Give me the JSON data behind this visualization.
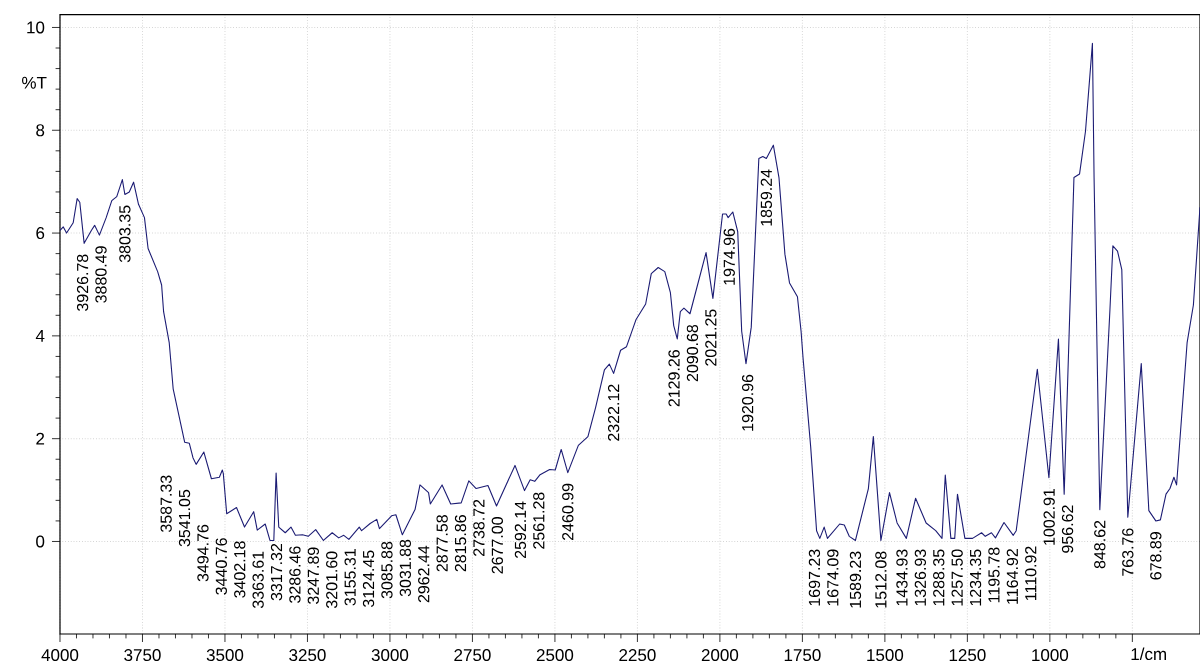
{
  "chart_data": {
    "type": "line",
    "xlabel": "1/cm",
    "ylabel": "%T",
    "xlim": [
      4000,
      545
    ],
    "ylim": [
      -1.8,
      10.25
    ],
    "xticks": [
      4000,
      3750,
      3500,
      3250,
      3000,
      2750,
      2500,
      2250,
      2000,
      1750,
      1500,
      1250,
      1000,
      {
        "value": 750,
        "label": null
      }
    ],
    "yticks": [
      0,
      2,
      4,
      6,
      8,
      10
    ],
    "grid": true,
    "x": [
      4000,
      3990,
      3980,
      3960,
      3948,
      3940,
      3926.78,
      3905,
      3895,
      3880.49,
      3860,
      3843,
      3828,
      3811,
      3803.35,
      3790,
      3777,
      3762,
      3744,
      3733,
      3704,
      3692,
      3686,
      3669,
      3657,
      3622,
      3608,
      3597,
      3587.33,
      3564,
      3541.05,
      3517,
      3508,
      3505,
      3494.76,
      3465,
      3440.76,
      3413,
      3402.18,
      3378,
      3363.61,
      3352,
      3345,
      3337,
      3317.32,
      3300,
      3286.46,
      3265,
      3247.89,
      3225,
      3201.6,
      3175,
      3155.31,
      3140,
      3124.45,
      3093,
      3085.88,
      3060,
      3040,
      3031.88,
      2995,
      2982,
      2962.44,
      2924,
      2909,
      2883,
      2877.58,
      2842,
      2815.86,
      2784,
      2761,
      2738.72,
      2703,
      2677,
      2621,
      2592.14,
      2575,
      2561.28,
      2545,
      2516,
      2499,
      2481,
      2460.99,
      2429,
      2400,
      2377,
      2350,
      2335,
      2322.12,
      2301,
      2283,
      2254,
      2225,
      2208,
      2187,
      2167,
      2150,
      2140,
      2129.26,
      2120,
      2109,
      2090.68,
      2042,
      2021.25,
      1992,
      1981,
      1974.96,
      1961,
      1946,
      1934,
      1920.96,
      1905,
      1882,
      1870,
      1859.24,
      1838,
      1821,
      1803,
      1789,
      1765,
      1754,
      1748,
      1725,
      1707,
      1697.23,
      1684,
      1674.09,
      1637,
      1623,
      1608,
      1589.23,
      1550,
      1535,
      1512.08,
      1486,
      1463,
      1434.93,
      1407,
      1375,
      1346,
      1326.93,
      1317,
      1300,
      1288.35,
      1280,
      1257.5,
      1234.35,
      1207,
      1195.78,
      1177,
      1164.92,
      1139,
      1110.92,
      1102,
      1038,
      1002.91,
      974,
      956.62,
      927,
      910,
      892,
      871,
      866,
      848.62,
      818,
      809,
      795,
      782,
      763.76,
      723,
      700,
      678.89,
      665,
      648,
      636,
      624,
      616,
      584,
      565,
      545
    ],
    "series": [
      {
        "color": "#1c1c74",
        "values": [
          6.05,
          6.12,
          6.0,
          6.2,
          6.67,
          6.6,
          5.8,
          6.05,
          6.15,
          5.96,
          6.3,
          6.63,
          6.71,
          7.04,
          6.75,
          6.8,
          6.99,
          6.56,
          6.3,
          5.7,
          5.25,
          4.99,
          4.47,
          3.87,
          2.97,
          1.93,
          1.91,
          1.63,
          1.5,
          1.74,
          1.22,
          1.25,
          1.39,
          1.32,
          0.54,
          0.66,
          0.28,
          0.58,
          0.22,
          0.34,
          0.02,
          0.02,
          1.33,
          0.28,
          0.17,
          0.28,
          0.12,
          0.13,
          0.1,
          0.23,
          0.02,
          0.17,
          0.07,
          0.12,
          0.04,
          0.28,
          0.21,
          0.35,
          0.43,
          0.25,
          0.5,
          0.52,
          0.13,
          0.62,
          1.1,
          0.95,
          0.73,
          1.1,
          0.73,
          0.75,
          1.18,
          1.03,
          1.09,
          0.69,
          1.48,
          0.99,
          1.2,
          1.17,
          1.3,
          1.4,
          1.39,
          1.79,
          1.34,
          1.87,
          2.04,
          2.6,
          3.34,
          3.45,
          3.27,
          3.72,
          3.79,
          4.32,
          4.62,
          5.21,
          5.33,
          5.25,
          4.84,
          4.2,
          3.94,
          4.47,
          4.54,
          4.43,
          5.62,
          4.73,
          6.37,
          6.37,
          6.3,
          6.41,
          6.03,
          4.09,
          3.46,
          4.17,
          7.45,
          7.49,
          7.45,
          7.71,
          7.08,
          5.59,
          5.03,
          4.76,
          4.09,
          3.57,
          1.85,
          0.21,
          0.06,
          0.28,
          0.06,
          0.34,
          0.32,
          0.1,
          0.02,
          1.03,
          2.04,
          0.02,
          0.95,
          0.36,
          0.06,
          0.84,
          0.36,
          0.21,
          0.06,
          1.29,
          0.06,
          0.06,
          0.92,
          0.06,
          0.06,
          0.17,
          0.1,
          0.17,
          0.07,
          0.37,
          0.12,
          0.21,
          3.35,
          1.24,
          3.94,
          0.92,
          7.08,
          7.15,
          7.98,
          9.69,
          7.08,
          0.62,
          4.5,
          5.75,
          5.65,
          5.29,
          0.47,
          3.46,
          0.6,
          0.4,
          0.42,
          0.92,
          1.03,
          1.25,
          1.1,
          3.87,
          4.6,
          6.5
        ]
      }
    ],
    "annotations": [
      {
        "text": "3926.78",
        "x": 3926.78,
        "y": 5.8
      },
      {
        "text": "3880.49",
        "x": 3880.49,
        "y": 5.96
      },
      {
        "text": "3803.35",
        "x": 3803.35,
        "y": 6.75
      },
      {
        "text": "3587.33",
        "x": 3587.33,
        "y": 1.5
      },
      {
        "text": "3541.05",
        "x": 3541.05,
        "y": 1.22
      },
      {
        "text": "3494.76",
        "x": 3494.76,
        "y": 0.54
      },
      {
        "text": "3440.76",
        "x": 3440.76,
        "y": 0.28
      },
      {
        "text": "3402.18",
        "x": 3402.18,
        "y": 0.22
      },
      {
        "text": "3363.61",
        "x": 3363.61,
        "y": 0.02
      },
      {
        "text": "3317.32",
        "x": 3317.32,
        "y": 0.17
      },
      {
        "text": "3286.46",
        "x": 3286.46,
        "y": 0.12
      },
      {
        "text": "3247.89",
        "x": 3247.89,
        "y": 0.1
      },
      {
        "text": "3201.60",
        "x": 3201.6,
        "y": 0.02
      },
      {
        "text": "3155.31",
        "x": 3155.31,
        "y": 0.07
      },
      {
        "text": "3124.45",
        "x": 3124.45,
        "y": 0.04
      },
      {
        "text": "3085.88",
        "x": 3085.88,
        "y": 0.21
      },
      {
        "text": "3031.88",
        "x": 3031.88,
        "y": 0.25
      },
      {
        "text": "2962.44",
        "x": 2962.44,
        "y": 0.13
      },
      {
        "text": "2877.58",
        "x": 2877.58,
        "y": 0.73
      },
      {
        "text": "2815.86",
        "x": 2815.86,
        "y": 0.73
      },
      {
        "text": "2738.72",
        "x": 2738.72,
        "y": 1.03
      },
      {
        "text": "2677.00",
        "x": 2677,
        "y": 0.69
      },
      {
        "text": "2592.14",
        "x": 2592.14,
        "y": 0.99
      },
      {
        "text": "2561.28",
        "x": 2561.28,
        "y": 1.17
      },
      {
        "text": "2460.99",
        "x": 2460.99,
        "y": 1.34
      },
      {
        "text": "2322.12",
        "x": 2322.12,
        "y": 3.27
      },
      {
        "text": "2129.26",
        "x": 2129.26,
        "y": 3.94
      },
      {
        "text": "2090.68",
        "x": 2090.68,
        "y": 4.43
      },
      {
        "text": "2021.25",
        "x": 2021.25,
        "y": 4.73
      },
      {
        "text": "1974.96",
        "x": 1974.96,
        "y": 6.3
      },
      {
        "text": "1920.96",
        "x": 1920.96,
        "y": 3.46
      },
      {
        "text": "1859.24",
        "x": 1859.24,
        "y": 7.45
      },
      {
        "text": "1697.23",
        "x": 1697.23,
        "y": 0.06
      },
      {
        "text": "1674.09",
        "x": 1674.09,
        "y": 0.06
      },
      {
        "text": "1589.23",
        "x": 1589.23,
        "y": 0.02
      },
      {
        "text": "1512.08",
        "x": 1512.08,
        "y": 0.02
      },
      {
        "text": "1434.93",
        "x": 1434.93,
        "y": 0.06
      },
      {
        "text": "1326.93",
        "x": 1326.93,
        "y": 0.06
      },
      {
        "text": "1288.35",
        "x": 1288.35,
        "y": 0.06
      },
      {
        "text": "1257.50",
        "x": 1257.5,
        "y": 0.06
      },
      {
        "text": "1234.35",
        "x": 1234.35,
        "y": 0.06
      },
      {
        "text": "1195.78",
        "x": 1195.78,
        "y": 0.1
      },
      {
        "text": "1164.92",
        "x": 1164.92,
        "y": 0.07
      },
      {
        "text": "1110.92",
        "x": 1110.92,
        "y": 0.12
      },
      {
        "text": "1002.91",
        "x": 1002.91,
        "y": 1.24
      },
      {
        "text": "956.62",
        "x": 956.62,
        "y": 0.92
      },
      {
        "text": "848.62",
        "x": 848.62,
        "y": 0.62
      },
      {
        "text": "763.76",
        "x": 763.76,
        "y": 0.47
      },
      {
        "text": "678.89",
        "x": 678.89,
        "y": 0.4
      }
    ]
  }
}
